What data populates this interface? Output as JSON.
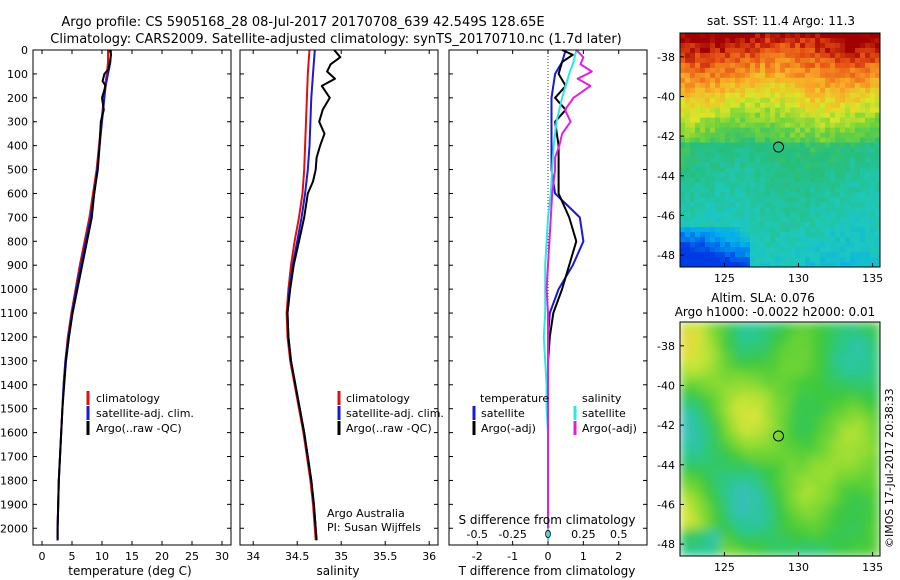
{
  "header": {
    "line1": "Argo profile: CS 5905168_28 08-Jul-2017 20170708_639 42.549S 128.65E",
    "line2": "Climatology: CARS2009. Satellite-adjusted climatology: synTS_20170710.nc (1.7d later)"
  },
  "credit": {
    "institution": "Argo Australia",
    "pi": "PI: Susan Wijffels"
  },
  "stamp": "©IMOS 17-Jul-2017 20:38:33",
  "colors": {
    "red": "#dd1111",
    "blue": "#1a1ad4",
    "black": "#000000",
    "cyan": "#2ee6e6",
    "magenta": "#e020e0"
  },
  "chart_data": [
    {
      "type": "line",
      "id": "temperature",
      "xlabel": "temperature (deg C)",
      "xlim": [
        -1.5,
        31.5
      ],
      "xticks": [
        "0",
        "5",
        "10",
        "15",
        "20",
        "25",
        "30"
      ],
      "ylim": [
        0,
        2070
      ],
      "yticks": [
        "0",
        "100",
        "200",
        "300",
        "400",
        "500",
        "600",
        "700",
        "800",
        "900",
        "1000",
        "1100",
        "1200",
        "1300",
        "1400",
        "1500",
        "1600",
        "1700",
        "1800",
        "1900",
        "2000"
      ],
      "legend": {
        "placement": "lower-center",
        "entries": [
          "climatology",
          "satellite-adj. clim.",
          "Argo(..raw -QC)"
        ]
      },
      "series": [
        {
          "name": "climatology",
          "color": "red",
          "depth": [
            0,
            50,
            100,
            150,
            200,
            300,
            400,
            500,
            600,
            700,
            800,
            900,
            1000,
            1100,
            1200,
            1300,
            1400,
            1500,
            1600,
            1700,
            1800,
            1900,
            2000,
            2050
          ],
          "values": [
            11.0,
            11.0,
            10.8,
            10.5,
            10.3,
            9.9,
            9.5,
            9.1,
            8.5,
            7.9,
            7.1,
            6.3,
            5.6,
            4.9,
            4.3,
            3.9,
            3.6,
            3.4,
            3.2,
            3.0,
            2.8,
            2.7,
            2.6,
            2.6
          ]
        },
        {
          "name": "satellite-adj. clim.",
          "color": "blue",
          "depth": [
            0,
            50,
            100,
            150,
            200,
            300,
            400,
            500,
            600,
            700,
            800,
            900,
            1000,
            1100,
            1200,
            1300,
            1400,
            1500,
            1600,
            1700,
            1800,
            1900,
            2000,
            2050
          ],
          "values": [
            11.5,
            11.4,
            11.0,
            10.6,
            10.4,
            10.0,
            9.6,
            9.2,
            8.7,
            8.1,
            7.3,
            6.5,
            5.7,
            5.0,
            4.4,
            3.9,
            3.6,
            3.4,
            3.2,
            3.0,
            2.8,
            2.7,
            2.6,
            2.6
          ]
        },
        {
          "name": "Argo(..raw -QC)",
          "color": "black",
          "depth": [
            0,
            20,
            50,
            80,
            100,
            130,
            150,
            200,
            250,
            300,
            350,
            400,
            500,
            600,
            700,
            800,
            900,
            1000,
            1100,
            1200,
            1300,
            1400,
            1500,
            1600,
            1700,
            1800,
            1900,
            2000,
            2050
          ],
          "values": [
            11.3,
            11.5,
            11.3,
            11.1,
            10.4,
            10.1,
            10.6,
            10.0,
            10.3,
            9.8,
            9.7,
            9.6,
            9.3,
            8.7,
            8.3,
            7.5,
            6.7,
            5.9,
            5.1,
            4.5,
            4.0,
            3.7,
            3.4,
            3.2,
            3.0,
            2.8,
            2.7,
            2.6,
            2.6
          ]
        }
      ]
    },
    {
      "type": "line",
      "id": "salinity",
      "xlabel": "salinity",
      "xlim": [
        33.85,
        36.1
      ],
      "xticks": [
        "34",
        "34.5",
        "35",
        "35.5",
        "36"
      ],
      "ylim": [
        0,
        2070
      ],
      "legend": {
        "placement": "lower-center",
        "entries": [
          "climatology",
          "satellite-adj. clim.",
          "Argo(..raw -QC)"
        ]
      },
      "series": [
        {
          "name": "climatology",
          "color": "red",
          "depth": [
            0,
            50,
            100,
            200,
            300,
            400,
            500,
            600,
            700,
            800,
            900,
            1000,
            1100,
            1200,
            1300,
            1400,
            1500,
            1600,
            1700,
            1800,
            1900,
            2000,
            2050
          ],
          "values": [
            34.64,
            34.63,
            34.62,
            34.61,
            34.6,
            34.59,
            34.58,
            34.56,
            34.52,
            34.47,
            34.43,
            34.4,
            34.38,
            34.39,
            34.42,
            34.47,
            34.52,
            34.57,
            34.61,
            34.65,
            34.68,
            34.7,
            34.71
          ]
        },
        {
          "name": "satellite-adj. clim.",
          "color": "blue",
          "depth": [
            0,
            50,
            100,
            200,
            300,
            400,
            500,
            600,
            700,
            800,
            900,
            1000,
            1100,
            1200,
            1300,
            1400,
            1500,
            1600,
            1700,
            1800,
            1900,
            2000,
            2050
          ],
          "values": [
            34.7,
            34.69,
            34.68,
            34.66,
            34.65,
            34.64,
            34.62,
            34.59,
            34.55,
            34.5,
            34.45,
            34.41,
            34.39,
            34.4,
            34.43,
            34.48,
            34.53,
            34.58,
            34.62,
            34.66,
            34.69,
            34.71,
            34.72
          ]
        },
        {
          "name": "Argo(..raw -QC)",
          "color": "black",
          "depth": [
            0,
            30,
            60,
            90,
            120,
            150,
            200,
            250,
            300,
            350,
            400,
            450,
            500,
            550,
            600,
            700,
            800,
            900,
            1000,
            1100,
            1200,
            1300,
            1400,
            1500,
            1600,
            1700,
            1800,
            1900,
            2000,
            2050
          ],
          "values": [
            34.92,
            34.99,
            34.88,
            34.84,
            34.93,
            34.78,
            34.87,
            34.79,
            34.75,
            34.81,
            34.76,
            34.72,
            34.71,
            34.68,
            34.62,
            34.58,
            34.52,
            34.46,
            34.42,
            34.39,
            34.4,
            34.43,
            34.48,
            34.53,
            34.58,
            34.62,
            34.66,
            34.69,
            34.71,
            34.72
          ]
        }
      ]
    },
    {
      "type": "line",
      "id": "difference",
      "xlabel": "T difference from climatology",
      "xlabel_top": "S difference from climatology",
      "xlim": [
        -2.8,
        2.8
      ],
      "xticks": [
        "-2",
        "-1",
        "0",
        "1",
        "2"
      ],
      "xticks_top": [
        "-0.5",
        "-0.25",
        "0",
        "0.25",
        "0.5"
      ],
      "ylim": [
        0,
        2070
      ],
      "legend": {
        "placement": "lower-center",
        "headers": [
          "temperature",
          "salinity"
        ],
        "entries": [
          "satellite",
          "Argo(-adj)",
          "satellite",
          "Argo(-adj)"
        ]
      },
      "series": [
        {
          "name": "temperature satellite",
          "color": "blue",
          "depth": [
            0,
            50,
            100,
            200,
            300,
            400,
            500,
            600,
            700,
            800,
            900,
            1000,
            1100,
            1200,
            1300,
            1400,
            1500,
            1600,
            1800,
            2000,
            2050
          ],
          "values": [
            0.5,
            0.4,
            0.2,
            0.1,
            0.1,
            0.1,
            0.1,
            0.2,
            0.9,
            1.0,
            0.7,
            0.3,
            0.05,
            0.0,
            0.0,
            0.0,
            0.0,
            0.0,
            0.0,
            0.0,
            0.0
          ]
        },
        {
          "name": "temperature Argo(-adj)",
          "color": "black",
          "depth": [
            0,
            20,
            50,
            100,
            150,
            200,
            250,
            300,
            400,
            500,
            600,
            700,
            800,
            900,
            1000,
            1100,
            1200,
            1300,
            1400,
            1500,
            1600,
            1800,
            2000,
            2050
          ],
          "values": [
            0.4,
            0.7,
            0.4,
            0.3,
            0.5,
            0.2,
            0.5,
            0.2,
            0.3,
            0.3,
            0.3,
            0.6,
            0.8,
            0.6,
            0.4,
            0.15,
            0.05,
            0.0,
            0.0,
            0.0,
            0.0,
            0.0,
            0.0,
            0.0
          ]
        },
        {
          "name": "salinity satellite",
          "color": "cyan",
          "depth": [
            0,
            50,
            100,
            200,
            300,
            400,
            500,
            600,
            700,
            800,
            900,
            1000,
            1100,
            1200,
            1300,
            1400,
            1500,
            1600,
            1800,
            2000,
            2050
          ],
          "values": [
            0.2,
            0.18,
            0.15,
            0.1,
            0.06,
            0.04,
            0.03,
            0.02,
            0.0,
            -0.01,
            -0.02,
            -0.02,
            -0.02,
            -0.03,
            -0.02,
            -0.01,
            -0.01,
            0.0,
            0.0,
            0.0,
            0.0
          ]
        },
        {
          "name": "salinity Argo(-adj)",
          "color": "magenta",
          "depth": [
            0,
            30,
            60,
            90,
            100,
            120,
            150,
            200,
            250,
            300,
            350,
            400,
            450,
            500,
            600,
            700,
            800,
            900,
            1000,
            1100,
            1200,
            1300,
            1400,
            1600,
            2000
          ],
          "values": [
            0.2,
            0.25,
            0.23,
            0.31,
            0.28,
            0.21,
            0.3,
            0.18,
            0.12,
            0.16,
            0.1,
            0.08,
            0.05,
            0.05,
            0.03,
            0.02,
            0.01,
            0.0,
            -0.01,
            0.0,
            0.0,
            0.0,
            0.0,
            0.0,
            0.0
          ]
        }
      ]
    },
    {
      "type": "heatmap",
      "id": "sst-map",
      "title": "sat. SST: 11.4 Argo: 11.3",
      "xlim": [
        122,
        135.5
      ],
      "ylim": [
        -48.6,
        -36.8
      ],
      "xticks": [
        "125",
        "130",
        "135"
      ],
      "yticks": [
        "-38",
        "-40",
        "-42",
        "-44",
        "-46",
        "-48"
      ],
      "marker": {
        "lon": 128.65,
        "lat": -42.549
      }
    },
    {
      "type": "heatmap",
      "id": "sla-map",
      "title": "Altim. SLA: 0.076",
      "subtitle": "Argo h1000: -0.0022 h2000: 0.01",
      "xlim": [
        122,
        135.5
      ],
      "ylim": [
        -48.6,
        -36.8
      ],
      "xticks": [
        "125",
        "130",
        "135"
      ],
      "yticks": [
        "-38",
        "-40",
        "-42",
        "-44",
        "-46",
        "-48"
      ],
      "marker": {
        "lon": 128.65,
        "lat": -42.549
      }
    }
  ]
}
